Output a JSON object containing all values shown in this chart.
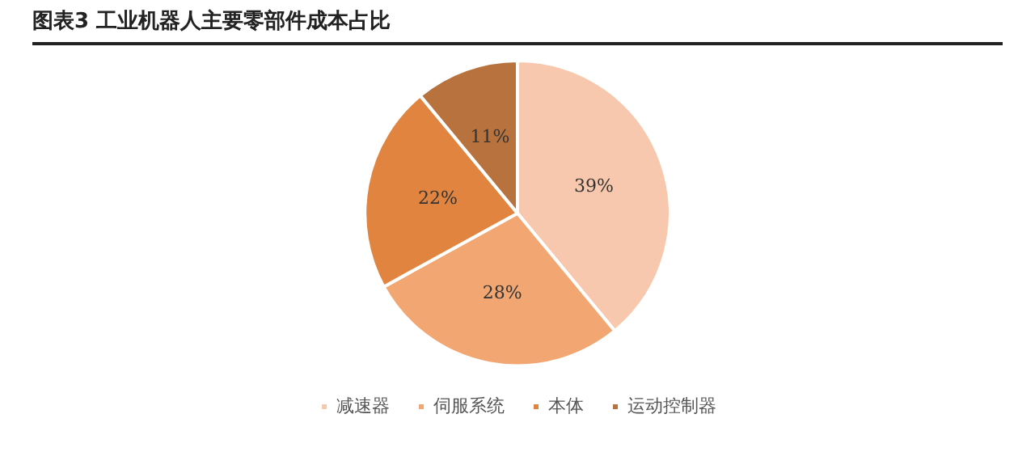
{
  "chart_data": {
    "type": "pie",
    "title": "图表3 工业机器人主要零部件成本占比",
    "categories": [
      "减速器",
      "伺服系统",
      "本体",
      "运动控制器"
    ],
    "values": [
      39,
      28,
      22,
      11
    ],
    "value_labels": [
      "39%",
      "28%",
      "22%",
      "11%"
    ],
    "colors": [
      "#f7c8ad",
      "#f2a672",
      "#e0843f",
      "#b8723d"
    ],
    "legend": "bottom"
  }
}
